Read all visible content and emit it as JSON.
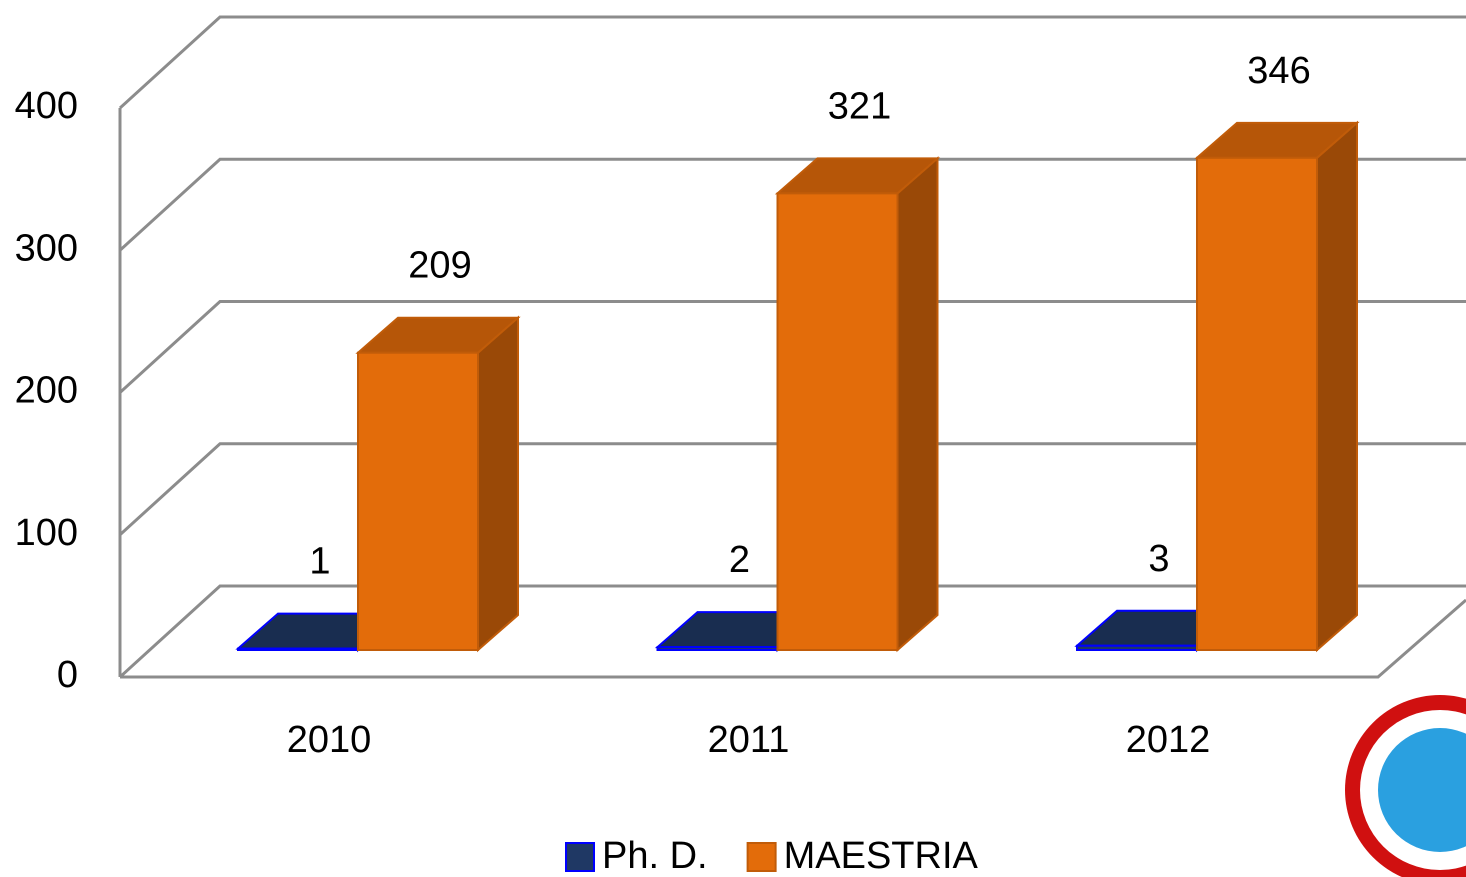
{
  "chart_data": {
    "type": "bar",
    "categories": [
      "2010",
      "2011",
      "2012"
    ],
    "series": [
      {
        "name": "Ph. D.",
        "color": "#1f3864",
        "values": [
          1,
          2,
          3
        ]
      },
      {
        "name": "MAESTRIA",
        "color": "#e36c0a",
        "values": [
          209,
          321,
          346
        ]
      }
    ],
    "ylim": [
      0,
      400
    ],
    "yticks": [
      0,
      100,
      200,
      300,
      400
    ],
    "grid": true,
    "legend": "bottom"
  }
}
